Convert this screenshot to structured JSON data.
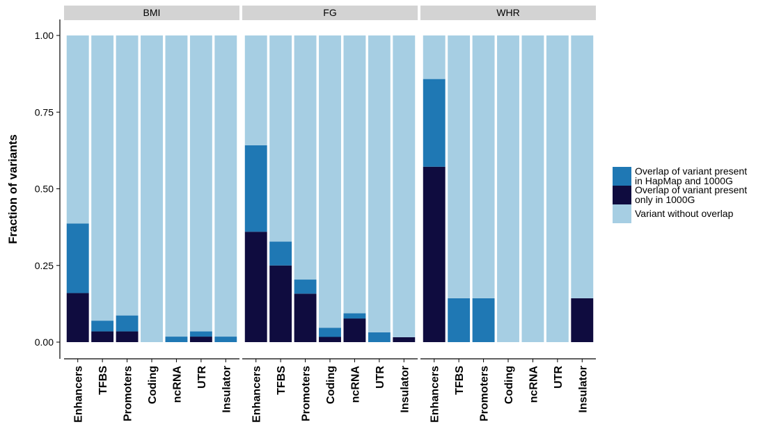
{
  "chart_data": {
    "type": "bar",
    "stacked": true,
    "ylabel": "Fraction of variants",
    "ylim": [
      0,
      1
    ],
    "yticks": [
      "0.00",
      "0.25",
      "0.50",
      "0.75",
      "1.00"
    ],
    "categories": [
      "Enhancers",
      "TFBS",
      "Promoters",
      "Coding",
      "ncRNA",
      "UTR",
      "Insulator"
    ],
    "legend_position": "right",
    "series_meta": [
      {
        "key": "only1000g",
        "name": "Overlap of variant present only in 1000G",
        "color": "#0f0c3f"
      },
      {
        "key": "hapmap",
        "name": "Overlap of variant present in HapMap and 1000G",
        "color": "#1f78b4"
      },
      {
        "key": "none",
        "name": "Variant without overlap",
        "color": "#a6cee3"
      }
    ],
    "legend": [
      {
        "key": "hapmap",
        "line1": "Overlap of variant present",
        "line2": "in HapMap and 1000G"
      },
      {
        "key": "only1000g",
        "line1": "Overlap of variant present",
        "line2": "only in 1000G"
      },
      {
        "key": "none",
        "line1": "Variant without overlap",
        "line2": ""
      }
    ],
    "facets": [
      {
        "name": "BMI",
        "only1000g": [
          0.16,
          0.035,
          0.035,
          0.0,
          0.0,
          0.018,
          0.0
        ],
        "hapmap": [
          0.227,
          0.035,
          0.052,
          0.0,
          0.018,
          0.017,
          0.018
        ],
        "none": [
          0.613,
          0.93,
          0.913,
          1.0,
          0.982,
          0.965,
          0.982
        ]
      },
      {
        "name": "FG",
        "only1000g": [
          0.36,
          0.25,
          0.158,
          0.017,
          0.077,
          0.0,
          0.016
        ],
        "hapmap": [
          0.282,
          0.078,
          0.046,
          0.03,
          0.017,
          0.032,
          0.0
        ],
        "none": [
          0.358,
          0.672,
          0.796,
          0.953,
          0.906,
          0.968,
          0.984
        ]
      },
      {
        "name": "WHR",
        "only1000g": [
          0.572,
          0.0,
          0.0,
          0.0,
          0.0,
          0.0,
          0.143
        ],
        "hapmap": [
          0.286,
          0.143,
          0.143,
          0.0,
          0.0,
          0.0,
          0.0
        ],
        "none": [
          0.142,
          0.857,
          0.857,
          1.0,
          1.0,
          1.0,
          0.857
        ]
      }
    ]
  }
}
